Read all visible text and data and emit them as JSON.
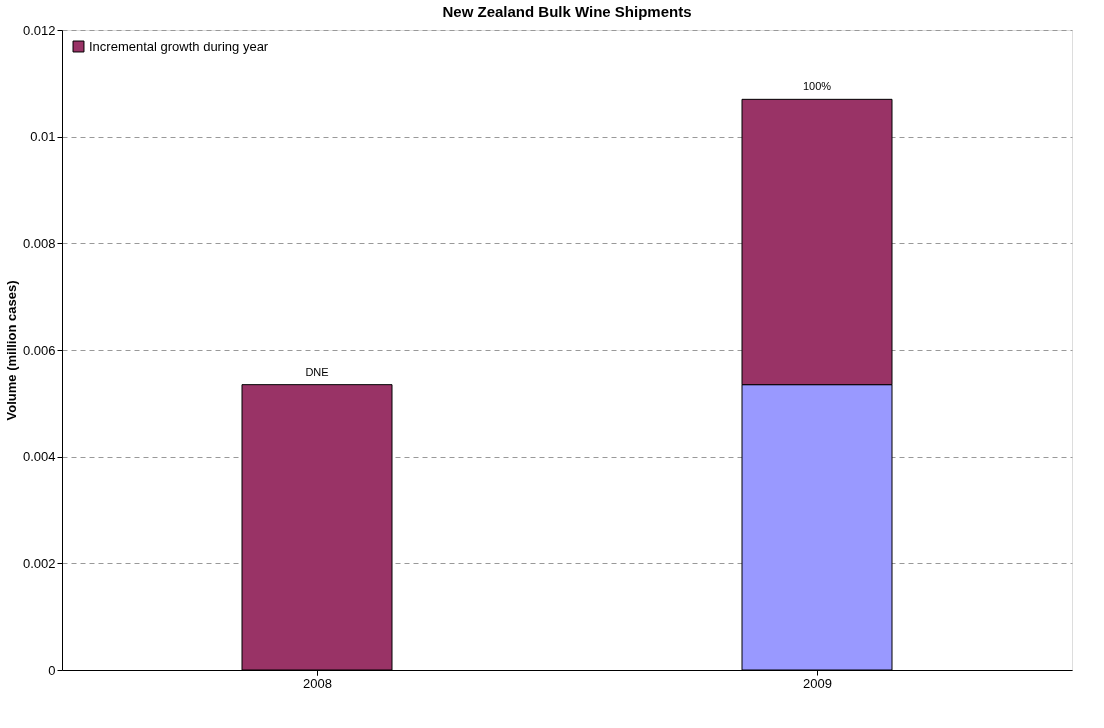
{
  "chart_data": {
    "type": "bar",
    "title": "New Zealand Bulk Wine Shipments",
    "ylabel": "Volume (million cases)",
    "categories": [
      "2008",
      "2009"
    ],
    "stacked": true,
    "series": [
      {
        "color": "#9999ff",
        "values": [
          null,
          0.00535
        ]
      },
      {
        "name": "Incremental growth during year",
        "color": "#993366",
        "values": [
          0.00535,
          0.00535
        ]
      }
    ],
    "annotations": [
      {
        "text": "DNE",
        "x": "2008",
        "y": 0.00535
      },
      {
        "text": "100%",
        "x": "2009",
        "y": 0.0107
      }
    ],
    "ylim": [
      0,
      0.012
    ],
    "yticks": [
      0,
      0.002,
      0.004,
      0.006,
      0.008,
      0.01,
      0.012
    ],
    "grid": "y",
    "legend": "top left"
  }
}
